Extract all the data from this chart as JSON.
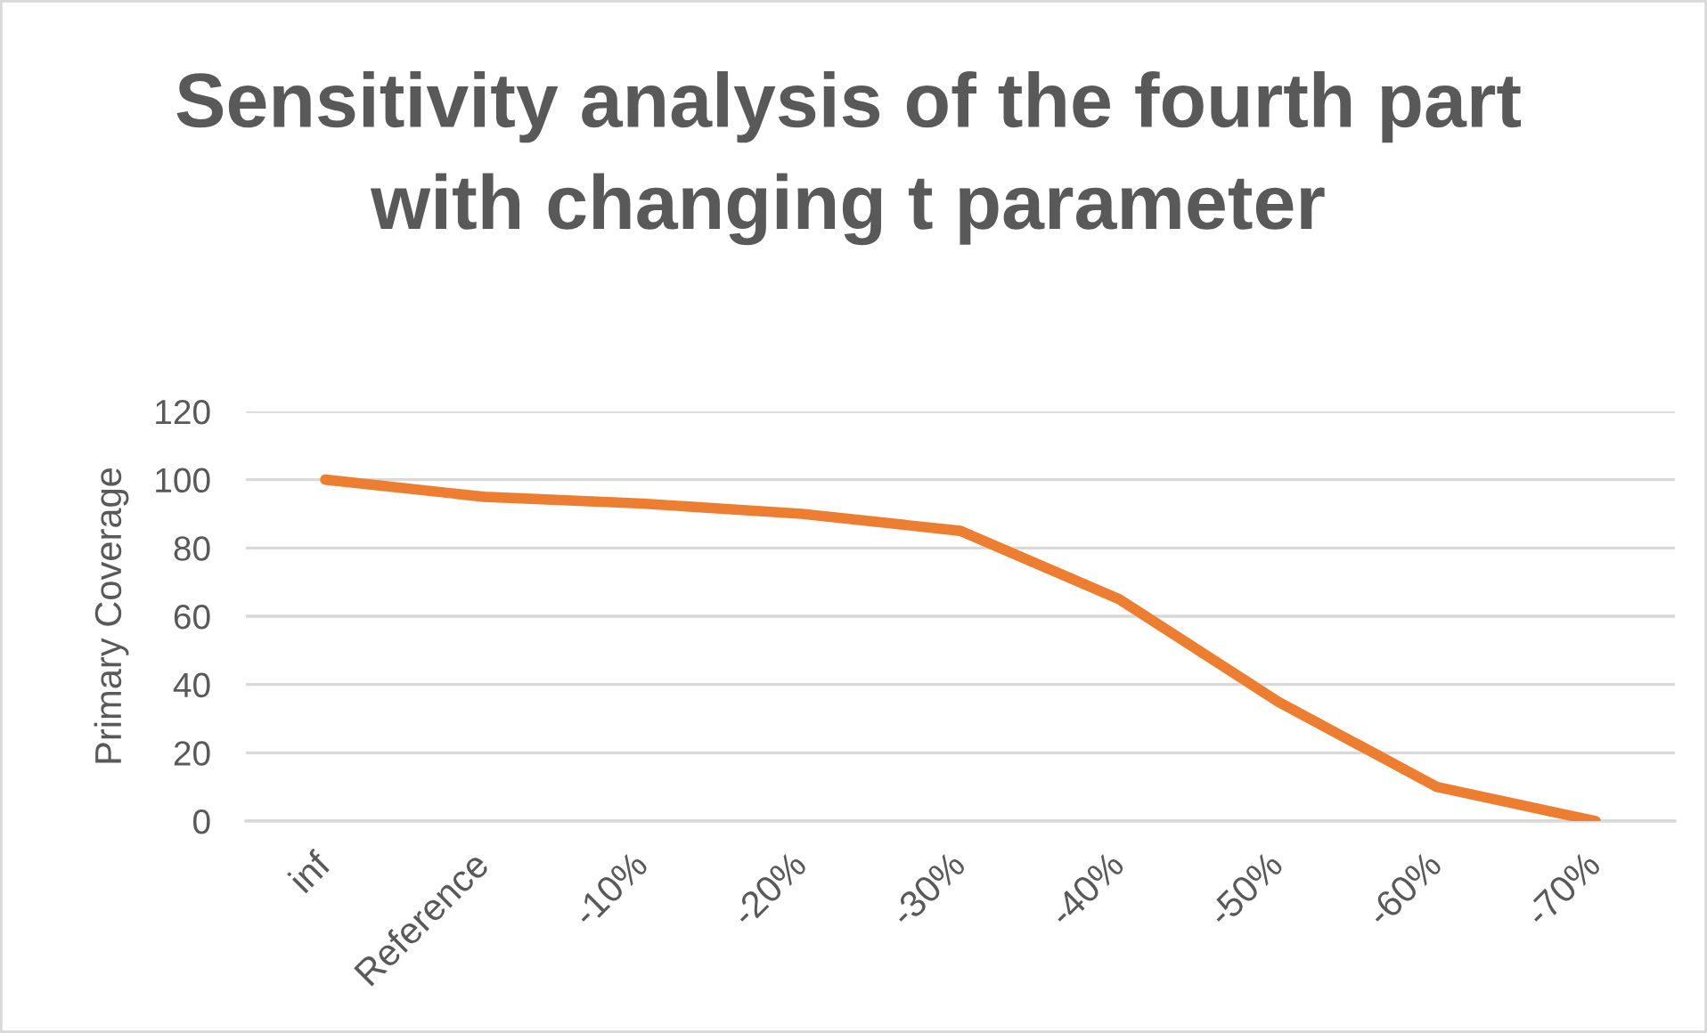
{
  "chart_data": {
    "type": "line",
    "title": "Sensitivity analysis of the fourth part with changing t parameter",
    "ylabel": "Primary Coverage",
    "categories": [
      "inf",
      "Reference",
      "-10%",
      "-20%",
      "-30%",
      "-40%",
      "-50%",
      "-60%",
      "-70%"
    ],
    "series": [
      {
        "color": "#ed7d31",
        "values": [
          100,
          95,
          93,
          90,
          85,
          65,
          35,
          10,
          0
        ]
      }
    ],
    "ylim": [
      0,
      120
    ],
    "yticks": [
      0,
      20,
      40,
      60,
      80,
      100,
      120
    ],
    "grid": "y",
    "marker": "none",
    "line_style": "solid"
  }
}
